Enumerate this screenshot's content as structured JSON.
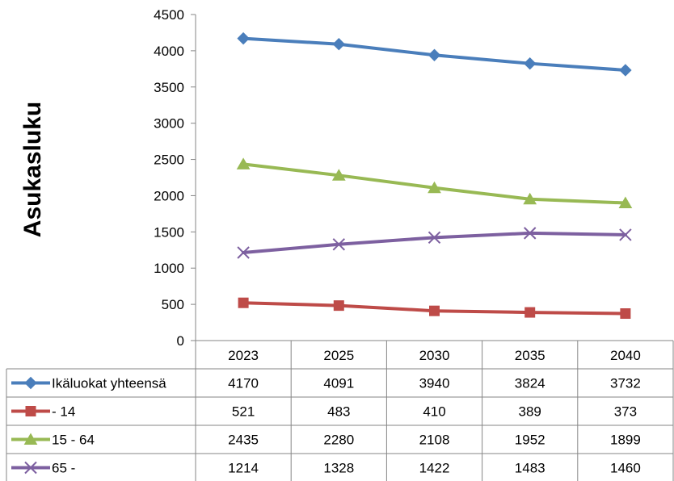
{
  "chart_data": {
    "type": "line",
    "title": "",
    "ylabel": "Asukasluku",
    "xlabel": "",
    "categories": [
      "2023",
      "2025",
      "2030",
      "2035",
      "2040"
    ],
    "ylim": [
      0,
      4500
    ],
    "yticks": [
      0,
      500,
      1000,
      1500,
      2000,
      2500,
      3000,
      3500,
      4000,
      4500
    ],
    "grid": false,
    "legend": "data-table",
    "series": [
      {
        "name": "Ikäluokat yhteensä",
        "values": [
          4170,
          4091,
          3940,
          3824,
          3732
        ],
        "color": "#4A7EBB",
        "marker": "diamond"
      },
      {
        "name": "- 14",
        "values": [
          521,
          483,
          410,
          389,
          373
        ],
        "color": "#BE4B48",
        "marker": "square"
      },
      {
        "name": "15 - 64",
        "values": [
          2435,
          2280,
          2108,
          1952,
          1899
        ],
        "color": "#98B954",
        "marker": "triangle"
      },
      {
        "name": "65 -",
        "values": [
          1214,
          1328,
          1422,
          1483,
          1460
        ],
        "color": "#7D60A0",
        "marker": "x"
      }
    ]
  }
}
